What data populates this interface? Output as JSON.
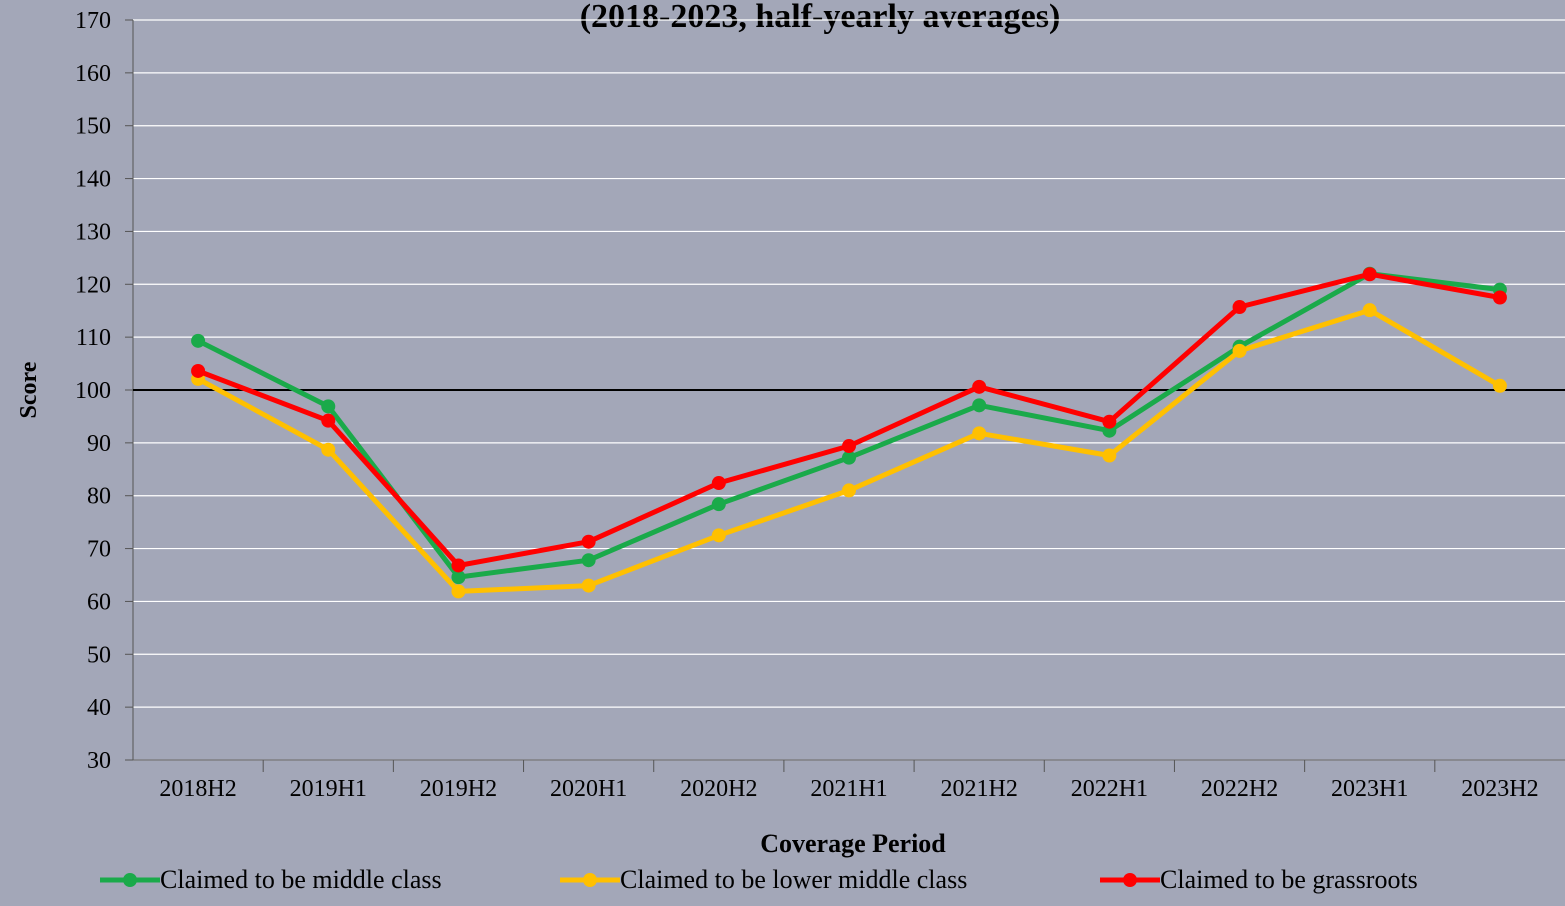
{
  "chart_data": {
    "type": "line",
    "subtitle": "(2018-2023, half-yearly averages)",
    "x_label": "Coverage Period",
    "y_label": "Score",
    "categories": [
      "2018H2",
      "2019H1",
      "2019H2",
      "2020H1",
      "2020H2",
      "2021H1",
      "2021H2",
      "2022H1",
      "2022H2",
      "2023H1",
      "2023H2"
    ],
    "series": [
      {
        "name": "Claimed to be middle class",
        "color": "#1aaa4a",
        "values": [
          109.3,
          96.9,
          64.6,
          67.8,
          78.4,
          87.2,
          97.1,
          92.3,
          108.2,
          122.0,
          119.0
        ]
      },
      {
        "name": "Claimed to be lower middle class",
        "color": "#ffc000",
        "values": [
          102.1,
          88.7,
          61.9,
          63.0,
          72.5,
          81.0,
          91.8,
          87.6,
          107.4,
          115.1,
          100.8
        ]
      },
      {
        "name": "Claimed to be grassroots",
        "color": "#ff0000",
        "values": [
          103.6,
          94.2,
          66.8,
          71.3,
          82.4,
          89.4,
          100.6,
          94.0,
          115.7,
          121.9,
          117.5
        ]
      }
    ],
    "ylim": [
      30,
      170
    ],
    "yticks": [
      30,
      40,
      50,
      60,
      70,
      80,
      90,
      100,
      110,
      120,
      130,
      140,
      150,
      160,
      170
    ],
    "reference_line": 100,
    "grid": true,
    "legend": "bottom"
  }
}
